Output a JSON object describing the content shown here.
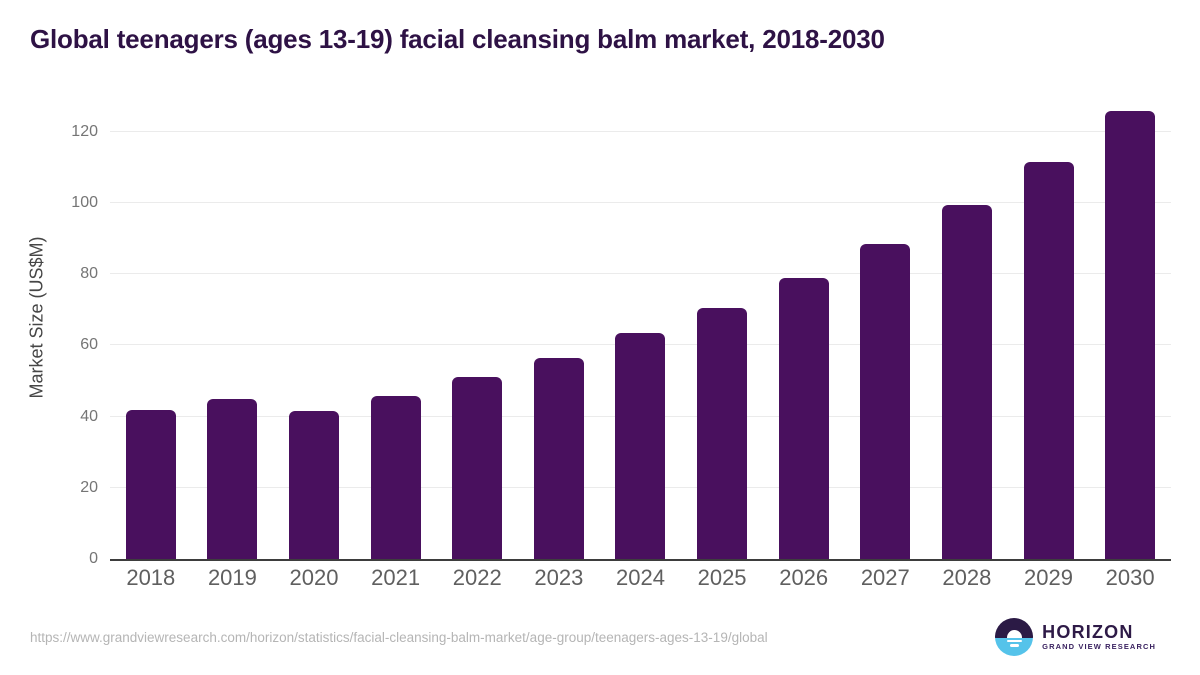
{
  "header": {
    "title": "Global teenagers (ages 13-19) facial cleansing balm market, 2018-2030"
  },
  "chart_data": {
    "type": "bar",
    "title": "Global teenagers (ages 13-19) facial cleansing balm market, 2018-2030",
    "categories": [
      "2018",
      "2019",
      "2020",
      "2021",
      "2022",
      "2023",
      "2024",
      "2025",
      "2026",
      "2027",
      "2028",
      "2029",
      "2030"
    ],
    "values": [
      41.9,
      44.9,
      41.6,
      45.9,
      51.1,
      56.5,
      63.4,
      70.4,
      78.8,
      88.6,
      99.3,
      111.6,
      125.9
    ],
    "xlabel": "",
    "ylabel": "Market Size (US$M)",
    "ylim": [
      0,
      127.5
    ],
    "yticks": [
      0,
      20,
      40,
      60,
      80,
      100,
      120
    ],
    "grid": true,
    "legend": false,
    "bar_color": "#49105e"
  },
  "appearance": {
    "title_color": "#2e1245",
    "bar_color": "#49105e",
    "logo_navy": "#2b1a45",
    "logo_blue": "#55c3ea"
  },
  "footer": {
    "source_url": "https://www.grandviewresearch.com/horizon/statistics/facial-cleansing-balm-market/age-group/teenagers-ages-13-19/global",
    "logo": {
      "name": "HORIZON",
      "subtitle": "GRAND VIEW RESEARCH"
    }
  }
}
